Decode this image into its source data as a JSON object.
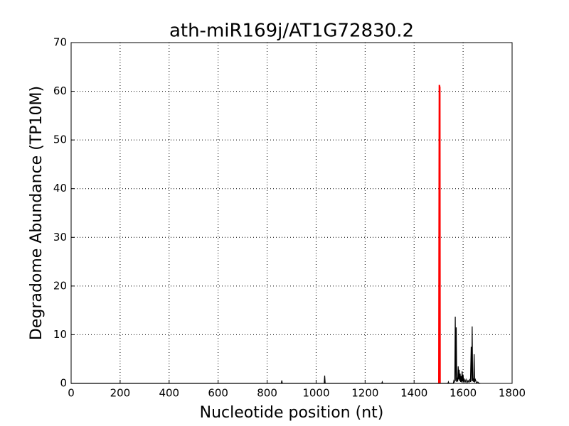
{
  "chart_data": {
    "type": "line",
    "title": "ath-miR169j/AT1G72830.2",
    "xlabel": "Nucleotide position (nt)",
    "ylabel": "Degradome Abundance (TP10M)",
    "xlim": [
      0,
      1800
    ],
    "xticks": [
      0,
      200,
      400,
      600,
      800,
      1000,
      1200,
      1400,
      1600,
      1800
    ],
    "ylim": [
      0,
      70
    ],
    "yticks": [
      0,
      10,
      20,
      30,
      40,
      50,
      60,
      70
    ],
    "grid": true,
    "series": [
      {
        "color": "#000000",
        "x": [
          0,
          858,
          860,
          862,
          1033,
          1035,
          1037,
          1268,
          1270,
          1272,
          1538,
          1540,
          1542,
          1560,
          1562,
          1564,
          1566,
          1568,
          1570,
          1572,
          1574,
          1576,
          1578,
          1580,
          1582,
          1584,
          1586,
          1588,
          1590,
          1592,
          1594,
          1596,
          1598,
          1600,
          1602,
          1604,
          1608,
          1612,
          1616,
          1620,
          1624,
          1628,
          1630,
          1633,
          1635,
          1637,
          1639,
          1641,
          1643,
          1645,
          1647,
          1650,
          1655,
          1660,
          1665,
          1670
        ],
        "values": [
          0,
          0,
          0.6,
          0,
          0,
          1.6,
          0,
          0,
          0.3,
          0,
          0,
          0.3,
          0,
          0,
          0.5,
          0.2,
          0.8,
          13.7,
          0.5,
          11.5,
          0.3,
          1.2,
          0.4,
          3.5,
          0.8,
          2.8,
          0.5,
          2.0,
          0.3,
          1.5,
          0.2,
          2.5,
          0.4,
          1.8,
          0.3,
          1.0,
          0.2,
          0.8,
          0.1,
          0.6,
          0.2,
          0.9,
          0.3,
          7.5,
          0.4,
          11.7,
          0.5,
          1.0,
          0.3,
          6.0,
          0.2,
          0.8,
          0.1,
          0.3,
          0,
          0
        ]
      },
      {
        "color": "#ff0000",
        "x": [
          1501,
          1503,
          1505,
          1506
        ],
        "values": [
          0,
          61.3,
          60.8,
          0
        ]
      }
    ]
  }
}
